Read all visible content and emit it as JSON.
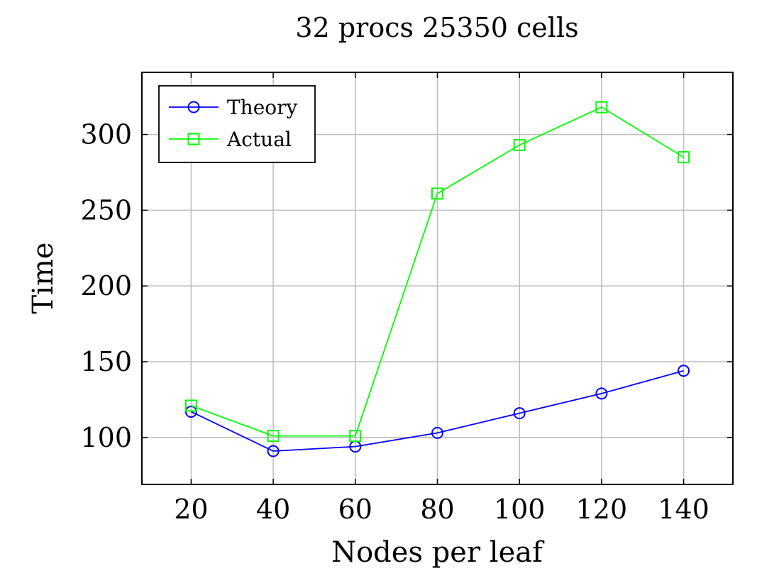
{
  "chart_data": {
    "type": "line",
    "title": "32 procs 25350 cells",
    "xlabel": "Nodes per leaf",
    "ylabel": "Time",
    "x": [
      20,
      40,
      60,
      80,
      100,
      120,
      140
    ],
    "xlim": [
      8,
      152
    ],
    "ylim": [
      69,
      341
    ],
    "xticks": [
      20,
      40,
      60,
      80,
      100,
      120,
      140
    ],
    "yticks": [
      100,
      150,
      200,
      250,
      300
    ],
    "grid": true,
    "legend_position": "top-left",
    "series": [
      {
        "name": "Theory",
        "color": "#0000ff",
        "marker": "circle",
        "values": [
          117,
          91,
          94,
          103,
          116,
          129,
          144
        ]
      },
      {
        "name": "Actual",
        "color": "#00ff00",
        "marker": "square",
        "values": [
          121,
          101,
          101,
          261,
          293,
          318,
          285
        ]
      }
    ]
  }
}
